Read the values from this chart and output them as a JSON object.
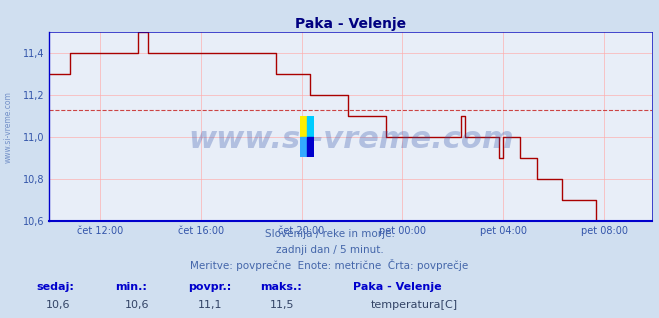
{
  "title": "Paka - Velenje",
  "title_color": "#000080",
  "bg_color": "#d0dff0",
  "plot_bg_color": "#e8eef8",
  "grid_color": "#ffaaaa",
  "grid_alpha": 0.9,
  "axis_color": "#0000bb",
  "line_color": "#aa0000",
  "avg_line_color": "#cc4444",
  "avg_line_value": 11.13,
  "avg_line_style": "--",
  "ylim": [
    10.6,
    11.5
  ],
  "yticks": [
    10.6,
    10.8,
    11.0,
    11.2,
    11.4
  ],
  "ytick_labels": [
    "10,6",
    "10,8",
    "11,0",
    "11,2",
    "11,4"
  ],
  "ylabel_color": "#3355aa",
  "xticklabels": [
    "čet 12:00",
    "čet 16:00",
    "čet 20:00",
    "pet 00:00",
    "pet 04:00",
    "pet 08:00"
  ],
  "xtick_positions": [
    24,
    72,
    120,
    168,
    216,
    264
  ],
  "watermark": "www.si-vreme.com",
  "watermark_color": "#3355aa",
  "watermark_alpha": 0.3,
  "watermark_fontsize": 24,
  "footer_line1": "Slovenija / reke in morje.",
  "footer_line2": "zadnji dan / 5 minut.",
  "footer_line3": "Meritve: povprečne  Enote: metrične  Črta: povprečje",
  "footer_color": "#4466aa",
  "footer_fontsize": 7.5,
  "stat_labels": [
    "sedaj:",
    "min.:",
    "povpr.:",
    "maks.:"
  ],
  "stat_values": [
    "10,6",
    "10,6",
    "11,1",
    "11,5"
  ],
  "stat_label_color": "#0000cc",
  "stat_value_color": "#334466",
  "legend_title": "Paka - Velenje",
  "legend_label": "temperatura[C]",
  "legend_color": "#cc0000",
  "side_label": "www.si-vreme.com",
  "side_label_color": "#5577bb",
  "num_points": 288,
  "temps": [
    11.3,
    11.3,
    11.3,
    11.3,
    11.3,
    11.3,
    11.3,
    11.3,
    11.3,
    11.3,
    11.4,
    11.4,
    11.4,
    11.4,
    11.4,
    11.4,
    11.4,
    11.4,
    11.4,
    11.4,
    11.4,
    11.4,
    11.4,
    11.4,
    11.4,
    11.4,
    11.4,
    11.4,
    11.4,
    11.4,
    11.4,
    11.4,
    11.4,
    11.4,
    11.4,
    11.4,
    11.4,
    11.4,
    11.4,
    11.4,
    11.4,
    11.4,
    11.5,
    11.5,
    11.5,
    11.5,
    11.5,
    11.4,
    11.4,
    11.4,
    11.4,
    11.4,
    11.4,
    11.4,
    11.4,
    11.4,
    11.4,
    11.4,
    11.4,
    11.4,
    11.4,
    11.4,
    11.4,
    11.4,
    11.4,
    11.4,
    11.4,
    11.4,
    11.4,
    11.4,
    11.4,
    11.4,
    11.4,
    11.4,
    11.4,
    11.4,
    11.4,
    11.4,
    11.4,
    11.4,
    11.4,
    11.4,
    11.4,
    11.4,
    11.4,
    11.4,
    11.4,
    11.4,
    11.4,
    11.4,
    11.4,
    11.4,
    11.4,
    11.4,
    11.4,
    11.4,
    11.4,
    11.4,
    11.4,
    11.4,
    11.4,
    11.4,
    11.4,
    11.4,
    11.4,
    11.4,
    11.4,
    11.4,
    11.3,
    11.3,
    11.3,
    11.3,
    11.3,
    11.3,
    11.3,
    11.3,
    11.3,
    11.3,
    11.3,
    11.3,
    11.3,
    11.3,
    11.3,
    11.3,
    11.2,
    11.2,
    11.2,
    11.2,
    11.2,
    11.2,
    11.2,
    11.2,
    11.2,
    11.2,
    11.2,
    11.2,
    11.2,
    11.2,
    11.2,
    11.2,
    11.2,
    11.2,
    11.1,
    11.1,
    11.1,
    11.1,
    11.1,
    11.1,
    11.1,
    11.1,
    11.1,
    11.1,
    11.1,
    11.1,
    11.1,
    11.1,
    11.1,
    11.1,
    11.1,
    11.1,
    11.0,
    11.0,
    11.0,
    11.0,
    11.0,
    11.0,
    11.0,
    11.0,
    11.0,
    11.0,
    11.0,
    11.0,
    11.0,
    11.0,
    11.0,
    11.0,
    11.0,
    11.0,
    11.0,
    11.0,
    11.0,
    11.0,
    11.0,
    11.0,
    11.0,
    11.0,
    11.0,
    11.0,
    11.0,
    11.0,
    11.0,
    11.0,
    11.0,
    11.0,
    11.0,
    11.0,
    11.1,
    11.1,
    11.0,
    11.0,
    11.0,
    11.0,
    11.0,
    11.0,
    11.0,
    11.0,
    11.0,
    11.0,
    11.0,
    11.0,
    11.0,
    11.0,
    11.0,
    11.0,
    10.9,
    10.9,
    11.0,
    11.0,
    11.0,
    11.0,
    11.0,
    11.0,
    11.0,
    11.0,
    10.9,
    10.9,
    10.9,
    10.9,
    10.9,
    10.9,
    10.9,
    10.9,
    10.8,
    10.8,
    10.8,
    10.8,
    10.8,
    10.8,
    10.8,
    10.8,
    10.8,
    10.8,
    10.8,
    10.8,
    10.7,
    10.7,
    10.7,
    10.7,
    10.7,
    10.7,
    10.7,
    10.7,
    10.7,
    10.7,
    10.7,
    10.7,
    10.7,
    10.7,
    10.7,
    10.7,
    10.6,
    10.6,
    10.6,
    10.6,
    10.6,
    10.6,
    10.6,
    10.6,
    10.6,
    10.6,
    10.6,
    10.6,
    10.6,
    10.6,
    10.6,
    10.6,
    10.6,
    10.6,
    10.6,
    10.6,
    10.6,
    10.6,
    10.6,
    10.6,
    10.6,
    10.6,
    10.6,
    10.6
  ]
}
